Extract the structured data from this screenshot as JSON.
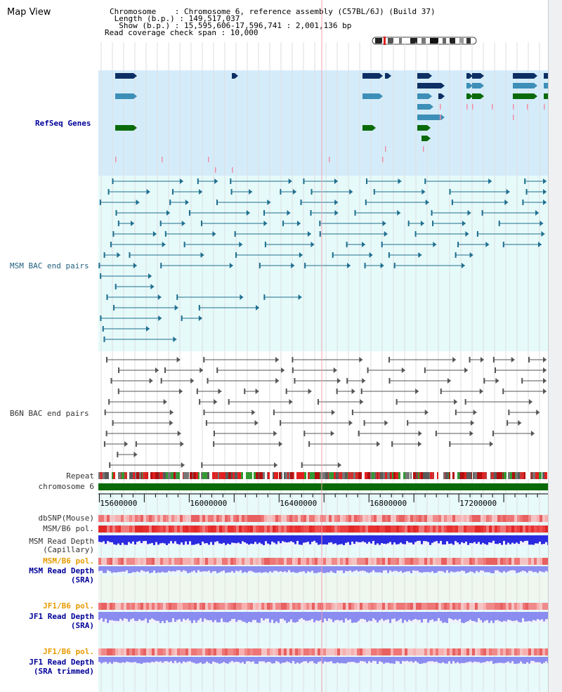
{
  "header": {
    "title": "Map View",
    "chromosome_line": "Chromosome    : Chromosome 6, reference assembly (C57BL/6J) (Build 37)",
    "length_line": " Length (b.p.) : 149,517,037",
    "show_line": "  Show (b.p.) : 15,595,606-17,596,741 : 2,001,136 bp",
    "coverage_line": "Read coverage check span : 10,000"
  },
  "tracks": {
    "refseq": "RefSeq Genes",
    "msm_bac": "MSM BAC end pairs",
    "b6n_bac": "B6N BAC end pairs",
    "repeat": "Repeat",
    "chromosome": "chromosome 6",
    "dbsnp": "dbSNP(Mouse)",
    "msm_b6_pol_1": "MSM/B6 pol.",
    "msm_read_depth_cap_1": "MSM Read Depth",
    "msm_read_depth_cap_2": "(Capillary)",
    "msm_b6_pol_2": "MSM/B6 pol.",
    "msm_read_depth_sra_1": "MSM Read Depth",
    "msm_read_depth_sra_2": "(SRA)",
    "jf1_b6_pol_1": "JF1/B6 pol.",
    "jf1_read_depth_sra_1": "JF1 Read Depth",
    "jf1_read_depth_sra_2": "(SRA)",
    "jf1_b6_pol_2": "JF1/B6 pol.",
    "jf1_read_depth_trim_1": "JF1 Read Depth",
    "jf1_read_depth_trim_2": "(SRA trimmed)"
  },
  "axis": {
    "ticks": [
      {
        "label": "15600000",
        "value": 15600000
      },
      {
        "label": "16000000",
        "value": 16000000
      },
      {
        "label": "16400000",
        "value": 16400000
      },
      {
        "label": "16800000",
        "value": 16800000
      },
      {
        "label": "17200000",
        "value": 17200000
      }
    ],
    "range": [
      15595606,
      17596741
    ]
  },
  "colors": {
    "refseq_bg": "#d4ecfa",
    "msm_bg": "#e6fafa",
    "gene_dark": "#0d2f63",
    "gene_light": "#3d8fb8",
    "gene_green": "#0a6a0a",
    "bac_msm": "#1f6f8f",
    "bac_b6n": "#555555",
    "chrom": "#0a6a0a",
    "depth_blue": "#2a2ae0",
    "depth_lav": "#8a8cf0",
    "pol_red": "#e83030"
  }
}
